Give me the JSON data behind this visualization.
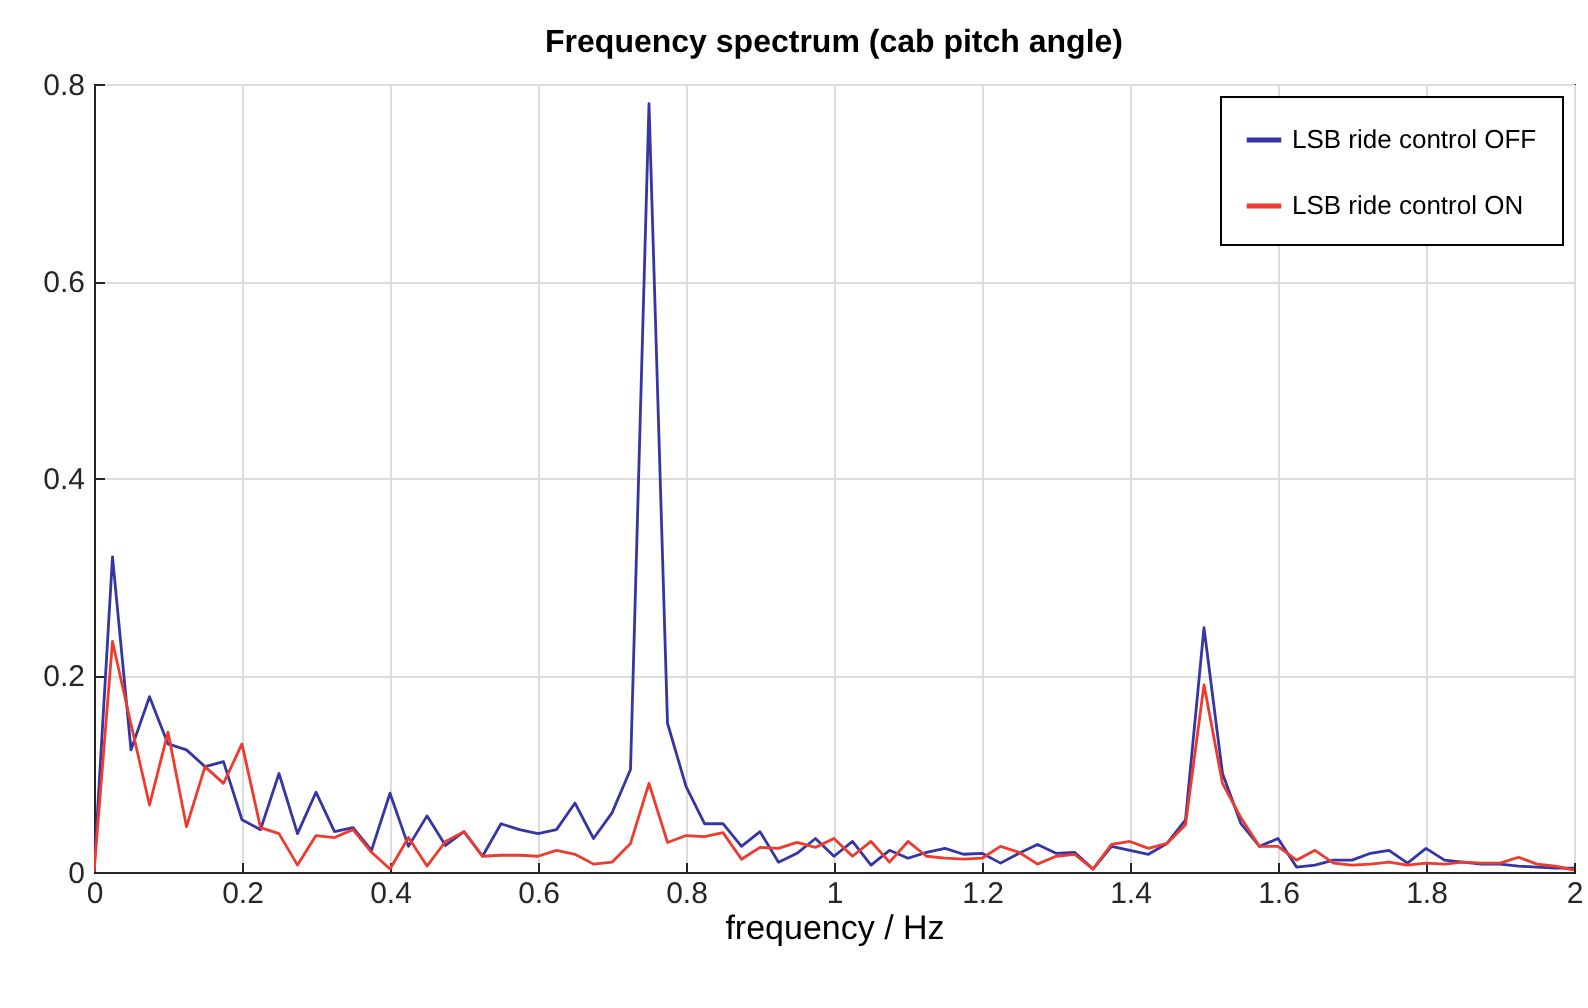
{
  "chart_data": {
    "type": "line",
    "title": "Frequency spectrum (cab pitch angle)",
    "xlabel": "frequency / Hz",
    "x": [
      0,
      0.025,
      0.05,
      0.075,
      0.1,
      0.125,
      0.15,
      0.175,
      0.2,
      0.225,
      0.25,
      0.275,
      0.3,
      0.325,
      0.35,
      0.375,
      0.4,
      0.425,
      0.45,
      0.475,
      0.5,
      0.525,
      0.55,
      0.575,
      0.6,
      0.625,
      0.65,
      0.675,
      0.7,
      0.725,
      0.75,
      0.775,
      0.8,
      0.825,
      0.85,
      0.875,
      0.9,
      0.925,
      0.95,
      0.975,
      1,
      1.025,
      1.05,
      1.075,
      1.1,
      1.125,
      1.15,
      1.175,
      1.2,
      1.225,
      1.25,
      1.275,
      1.3,
      1.325,
      1.35,
      1.375,
      1.4,
      1.425,
      1.45,
      1.475,
      1.5,
      1.525,
      1.55,
      1.575,
      1.6,
      1.625,
      1.65,
      1.675,
      1.7,
      1.725,
      1.75,
      1.775,
      1.8,
      1.825,
      1.85,
      1.875,
      1.9,
      1.925,
      1.95,
      1.975,
      2
    ],
    "series": [
      {
        "name": "LSB ride control OFF",
        "color": "#3535a5",
        "values": [
          0,
          0.32,
          0.124,
          0.178,
          0.13,
          0.124,
          0.107,
          0.112,
          0.053,
          0.043,
          0.1,
          0.039,
          0.081,
          0.041,
          0.045,
          0.022,
          0.08,
          0.026,
          0.057,
          0.027,
          0.041,
          0.016,
          0.049,
          0.043,
          0.039,
          0.043,
          0.07,
          0.034,
          0.06,
          0.104,
          0.78,
          0.151,
          0.087,
          0.049,
          0.049,
          0.026,
          0.041,
          0.01,
          0.019,
          0.034,
          0.016,
          0.031,
          0.007,
          0.022,
          0.014,
          0.02,
          0.024,
          0.018,
          0.019,
          0.009,
          0.019,
          0.028,
          0.019,
          0.02,
          0.003,
          0.026,
          0.022,
          0.018,
          0.029,
          0.053,
          0.248,
          0.1,
          0.049,
          0.026,
          0.034,
          0.005,
          0.007,
          0.012,
          0.012,
          0.019,
          0.022,
          0.009,
          0.024,
          0.012,
          0.01,
          0.008,
          0.008,
          0.006,
          0.005,
          0.004,
          0.004
        ]
      },
      {
        "name": "LSB ride control ON",
        "color": "#f03a2e",
        "values": [
          0,
          0.234,
          0.15,
          0.068,
          0.142,
          0.046,
          0.107,
          0.09,
          0.13,
          0.045,
          0.039,
          0.007,
          0.037,
          0.035,
          0.043,
          0.02,
          0.003,
          0.035,
          0.006,
          0.031,
          0.041,
          0.016,
          0.017,
          0.017,
          0.016,
          0.022,
          0.018,
          0.008,
          0.01,
          0.029,
          0.09,
          0.03,
          0.037,
          0.036,
          0.04,
          0.013,
          0.025,
          0.024,
          0.03,
          0.025,
          0.034,
          0.016,
          0.031,
          0.01,
          0.031,
          0.016,
          0.014,
          0.013,
          0.014,
          0.026,
          0.02,
          0.008,
          0.016,
          0.018,
          0.003,
          0.028,
          0.031,
          0.024,
          0.029,
          0.048,
          0.19,
          0.09,
          0.055,
          0.026,
          0.026,
          0.012,
          0.022,
          0.009,
          0.007,
          0.008,
          0.01,
          0.007,
          0.009,
          0.008,
          0.01,
          0.009,
          0.009,
          0.015,
          0.008,
          0.006,
          0.002
        ]
      }
    ],
    "xlim": [
      0,
      2
    ],
    "xticks": [
      0,
      0.2,
      0.4,
      0.6,
      0.8,
      1,
      1.2,
      1.4,
      1.6,
      1.8,
      2
    ],
    "ylim": [
      0,
      0.8
    ],
    "yticks": [
      0,
      0.2,
      0.4,
      0.6,
      0.8
    ],
    "grid": true,
    "legend": "top right",
    "line_style": "solid"
  }
}
